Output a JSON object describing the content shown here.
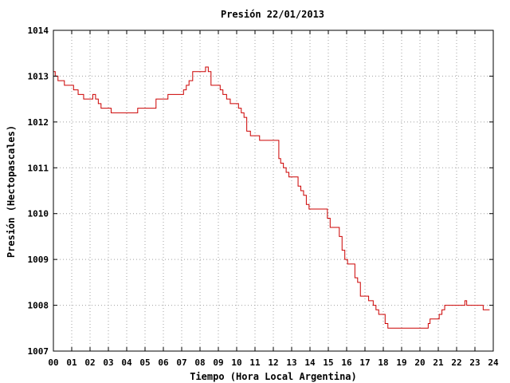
{
  "chart_data": {
    "type": "line",
    "title": "Presión 22/01/2013",
    "xlabel": "Tiempo (Hora Local Argentina)",
    "ylabel": "Presión (Hectopascales)",
    "xlim": [
      0,
      24
    ],
    "ylim": [
      1007,
      1014
    ],
    "x_ticks": [
      "00",
      "01",
      "02",
      "03",
      "04",
      "05",
      "06",
      "07",
      "08",
      "09",
      "10",
      "11",
      "12",
      "13",
      "14",
      "15",
      "16",
      "17",
      "18",
      "19",
      "20",
      "21",
      "22",
      "23",
      "24"
    ],
    "y_ticks": [
      "1007",
      "1008",
      "1009",
      "1010",
      "1011",
      "1012",
      "1013",
      "1014"
    ],
    "grid": true,
    "line_style": "step",
    "series": [
      {
        "name": "",
        "color": "#cc0000",
        "x": [
          0.0,
          0.1,
          0.25,
          0.6,
          1.1,
          1.35,
          1.65,
          2.15,
          2.3,
          2.45,
          2.6,
          3.15,
          4.6,
          5.6,
          6.25,
          7.1,
          7.25,
          7.4,
          7.6,
          8.3,
          8.45,
          8.6,
          9.1,
          9.25,
          9.45,
          9.65,
          10.1,
          10.25,
          10.4,
          10.55,
          10.75,
          11.25,
          11.5,
          12.3,
          12.4,
          12.55,
          12.7,
          12.85,
          13.35,
          13.5,
          13.65,
          13.8,
          13.95,
          14.1,
          14.95,
          15.1,
          15.6,
          15.75,
          15.9,
          16.05,
          16.45,
          16.6,
          16.75,
          17.2,
          17.45,
          17.6,
          17.75,
          17.9,
          18.1,
          18.25,
          18.45,
          20.45,
          20.55,
          20.75,
          21.05,
          21.2,
          21.35,
          21.5,
          22.45,
          22.55,
          22.7,
          23.45,
          23.8
        ],
        "y": [
          1013.1,
          1013.0,
          1012.9,
          1012.8,
          1012.7,
          1012.6,
          1012.5,
          1012.6,
          1012.5,
          1012.4,
          1012.3,
          1012.2,
          1012.3,
          1012.5,
          1012.6,
          1012.7,
          1012.8,
          1012.9,
          1013.1,
          1013.2,
          1013.1,
          1012.8,
          1012.7,
          1012.6,
          1012.5,
          1012.4,
          1012.3,
          1012.2,
          1012.1,
          1011.8,
          1011.7,
          1011.6,
          1011.6,
          1011.2,
          1011.1,
          1011.0,
          1010.9,
          1010.8,
          1010.6,
          1010.5,
          1010.4,
          1010.2,
          1010.1,
          1010.1,
          1009.9,
          1009.7,
          1009.5,
          1009.2,
          1009.0,
          1008.9,
          1008.6,
          1008.5,
          1008.2,
          1008.1,
          1008.0,
          1007.9,
          1007.8,
          1007.8,
          1007.6,
          1007.5,
          1007.5,
          1007.6,
          1007.7,
          1007.7,
          1007.8,
          1007.9,
          1008.0,
          1008.0,
          1008.1,
          1008.0,
          1008.0,
          1007.9,
          1007.9
        ]
      }
    ]
  }
}
